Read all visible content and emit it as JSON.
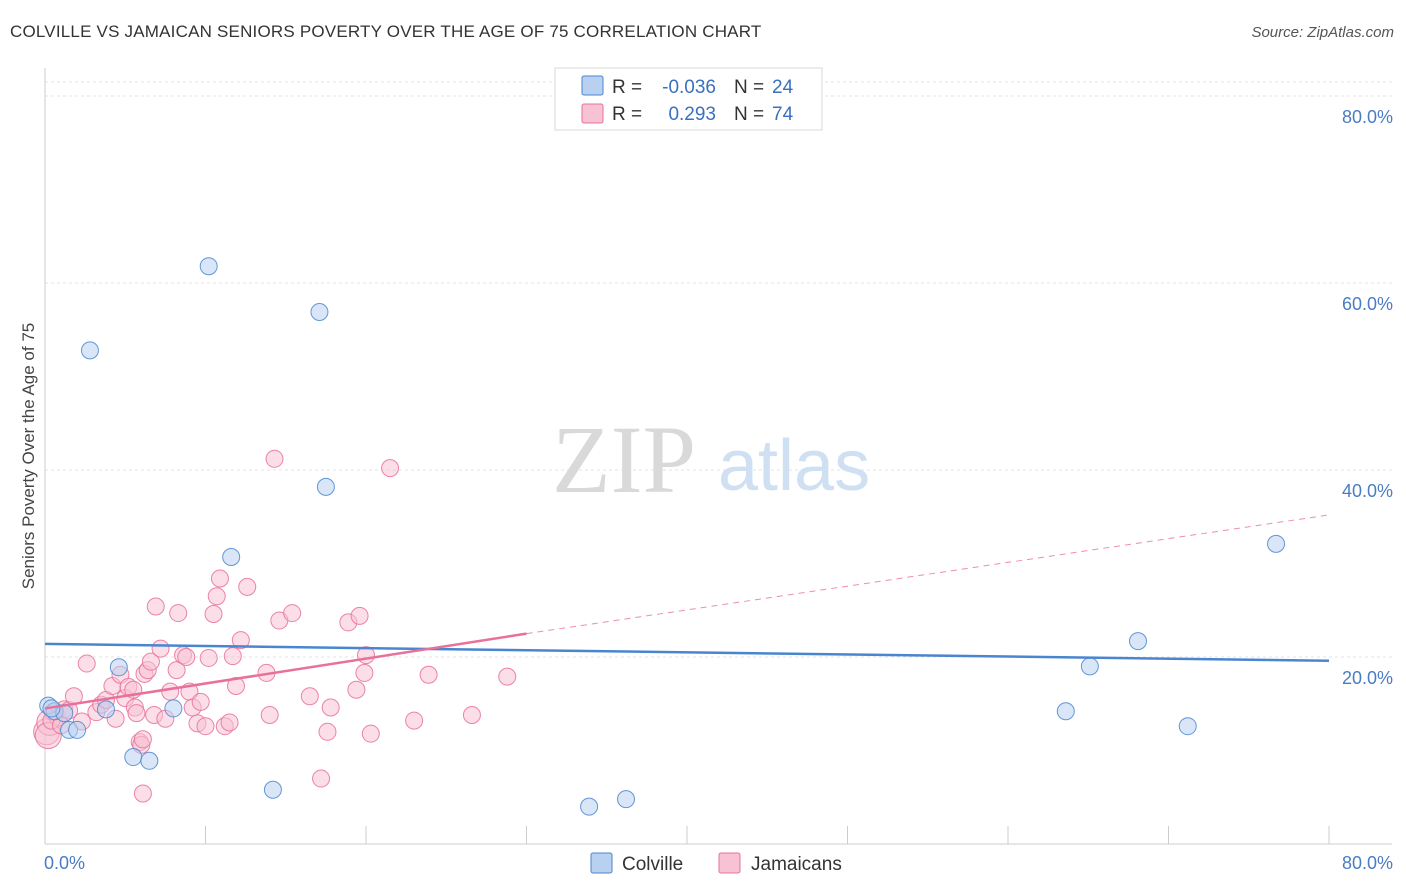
{
  "header": {
    "title": "COLVILLE VS JAMAICAN SENIORS POVERTY OVER THE AGE OF 75 CORRELATION CHART",
    "source": "Source: ZipAtlas.com"
  },
  "watermark": {
    "zip": "ZIP",
    "atlas": "atlas"
  },
  "colors": {
    "colville": "#4a86d0",
    "colville_fill": "#b9d1f0",
    "jamaicans": "#e8709a",
    "jamaicans_fill": "#f7c3d4",
    "tick": "#4a7cc4"
  },
  "legend_top": {
    "rows": [
      {
        "r_label": "R =",
        "r_value": "-0.036",
        "n_label": "N =",
        "n_value": "24"
      },
      {
        "r_label": "R =",
        "r_value": "0.293",
        "n_label": "N =",
        "n_value": "74"
      }
    ]
  },
  "legend_bottom": {
    "items": [
      {
        "label": "Colville"
      },
      {
        "label": "Jamaicans"
      }
    ]
  },
  "chart_data": {
    "type": "scatter",
    "title": "COLVILLE VS JAMAICAN SENIORS POVERTY OVER THE AGE OF 75 CORRELATION CHART",
    "xlabel": "",
    "ylabel": "Seniors Poverty Over the Age of 75",
    "xlim": [
      0,
      80
    ],
    "ylim": [
      0,
      83
    ],
    "x_tick_labels": [
      "0.0%",
      "80.0%"
    ],
    "y_ticks": [
      20,
      40,
      60,
      80
    ],
    "y_tick_labels": [
      "20.0%",
      "40.0%",
      "60.0%",
      "80.0%"
    ],
    "grid": true,
    "legend_position": "top-center",
    "series": [
      {
        "name": "Colville",
        "points": [
          [
            0.2,
            14.8
          ],
          [
            0.6,
            14.2
          ],
          [
            1.2,
            14.0
          ],
          [
            1.5,
            12.2
          ],
          [
            2.0,
            12.2
          ],
          [
            2.8,
            52.8
          ],
          [
            4.6,
            18.9
          ],
          [
            5.5,
            9.3
          ],
          [
            6.5,
            8.9
          ],
          [
            8.0,
            14.5
          ],
          [
            10.2,
            61.8
          ],
          [
            11.6,
            30.7
          ],
          [
            14.2,
            5.8
          ],
          [
            17.1,
            56.9
          ],
          [
            17.5,
            38.2
          ],
          [
            33.9,
            4.0
          ],
          [
            36.2,
            4.8
          ],
          [
            63.6,
            14.2
          ],
          [
            65.1,
            19.0
          ],
          [
            68.1,
            21.7
          ],
          [
            71.2,
            12.6
          ],
          [
            76.7,
            32.1
          ],
          [
            0.4,
            14.5
          ],
          [
            3.8,
            14.4
          ]
        ],
        "trend": {
          "x": [
            0,
            80
          ],
          "y": [
            21.4,
            19.6
          ]
        }
      },
      {
        "name": "Jamaicans",
        "points": [
          [
            0.1,
            12.0
          ],
          [
            0.3,
            13.0
          ],
          [
            0.5,
            14.1
          ],
          [
            0.8,
            13.5
          ],
          [
            1.2,
            14.4
          ],
          [
            1.5,
            14.3
          ],
          [
            1.8,
            15.8
          ],
          [
            2.3,
            13.1
          ],
          [
            2.6,
            19.3
          ],
          [
            3.2,
            14.1
          ],
          [
            3.5,
            14.9
          ],
          [
            3.8,
            15.4
          ],
          [
            4.2,
            16.9
          ],
          [
            4.4,
            13.4
          ],
          [
            4.7,
            18.1
          ],
          [
            5.0,
            15.6
          ],
          [
            5.2,
            16.8
          ],
          [
            5.5,
            16.5
          ],
          [
            5.6,
            14.6
          ],
          [
            5.7,
            14.0
          ],
          [
            5.9,
            10.9
          ],
          [
            6.0,
            10.6
          ],
          [
            6.1,
            11.2
          ],
          [
            6.1,
            5.4
          ],
          [
            6.2,
            18.2
          ],
          [
            6.4,
            18.6
          ],
          [
            6.6,
            19.5
          ],
          [
            6.8,
            13.8
          ],
          [
            6.9,
            25.4
          ],
          [
            7.2,
            20.9
          ],
          [
            7.5,
            13.4
          ],
          [
            7.8,
            16.3
          ],
          [
            8.2,
            18.6
          ],
          [
            8.3,
            24.7
          ],
          [
            8.6,
            20.2
          ],
          [
            8.8,
            20.0
          ],
          [
            9.0,
            16.3
          ],
          [
            9.2,
            14.6
          ],
          [
            9.5,
            12.9
          ],
          [
            9.7,
            15.2
          ],
          [
            10.0,
            12.6
          ],
          [
            10.2,
            19.9
          ],
          [
            10.5,
            24.6
          ],
          [
            10.7,
            26.5
          ],
          [
            10.9,
            28.4
          ],
          [
            11.2,
            12.6
          ],
          [
            11.5,
            13.0
          ],
          [
            11.7,
            20.1
          ],
          [
            11.9,
            16.9
          ],
          [
            12.2,
            21.8
          ],
          [
            12.6,
            27.5
          ],
          [
            13.8,
            18.3
          ],
          [
            14.0,
            13.8
          ],
          [
            14.3,
            41.2
          ],
          [
            14.6,
            23.9
          ],
          [
            15.4,
            24.7
          ],
          [
            16.5,
            15.8
          ],
          [
            17.2,
            7.0
          ],
          [
            17.6,
            12.0
          ],
          [
            17.8,
            14.6
          ],
          [
            18.9,
            23.7
          ],
          [
            19.4,
            16.5
          ],
          [
            19.6,
            24.4
          ],
          [
            19.9,
            18.3
          ],
          [
            20.0,
            20.2
          ],
          [
            20.3,
            11.8
          ],
          [
            21.5,
            40.2
          ],
          [
            23.0,
            13.2
          ],
          [
            23.9,
            18.1
          ],
          [
            26.6,
            13.8
          ],
          [
            28.8,
            17.9
          ],
          [
            0.2,
            11.6
          ],
          [
            0.4,
            13.2
          ],
          [
            1.0,
            12.7
          ]
        ],
        "trend_solid": {
          "x": [
            0,
            30
          ],
          "y": [
            14.5,
            22.5
          ]
        },
        "trend_dashed": {
          "x": [
            30,
            80
          ],
          "y": [
            22.5,
            35.2
          ]
        }
      }
    ]
  }
}
